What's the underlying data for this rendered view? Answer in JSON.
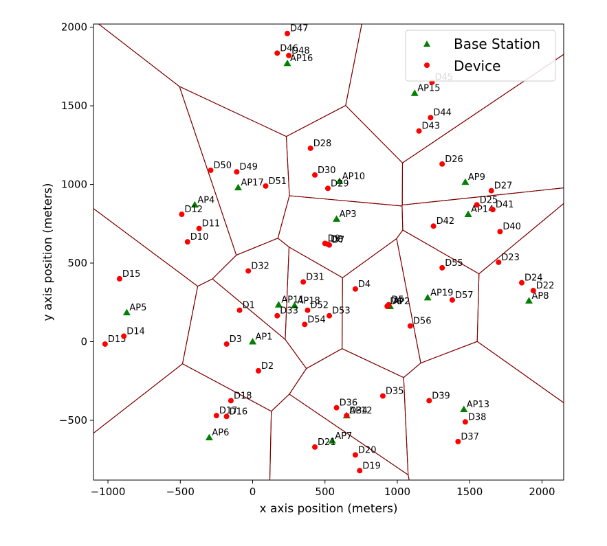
{
  "chart_data": {
    "type": "scatter",
    "xlabel": "x axis position (meters)",
    "ylabel": "y axis position (meters)",
    "xlim": [
      -1100,
      2150
    ],
    "ylim": [
      -880,
      2020
    ],
    "xticks": [
      -1000,
      -500,
      0,
      500,
      1000,
      1500,
      2000
    ],
    "xtick_labels": [
      "−1000",
      "−500",
      "0",
      "500",
      "1000",
      "1500",
      "2000"
    ],
    "yticks": [
      -500,
      0,
      500,
      1000,
      1500,
      2000
    ],
    "ytick_labels": [
      "−500",
      "0",
      "500",
      "1000",
      "1500",
      "2000"
    ],
    "grid": false,
    "legend": {
      "placement": "top-right",
      "entries": [
        {
          "name": "Base Station",
          "marker": "triangle",
          "color": "#008000"
        },
        {
          "name": "Device",
          "marker": "circle",
          "color": "#ff0000"
        }
      ]
    },
    "voronoi_color": "#800000",
    "series": [
      {
        "name": "Base Station",
        "color": "#008000",
        "points": [
          {
            "label": "AP1",
            "x": 0,
            "y": 0
          },
          {
            "label": "AP2",
            "x": 950,
            "y": 225
          },
          {
            "label": "AP3",
            "x": 580,
            "y": 780
          },
          {
            "label": "AP4",
            "x": -400,
            "y": 870
          },
          {
            "label": "AP5",
            "x": -870,
            "y": 185
          },
          {
            "label": "AP6",
            "x": -300,
            "y": -610
          },
          {
            "label": "AP7",
            "x": 550,
            "y": -630
          },
          {
            "label": "AP8",
            "x": 1910,
            "y": 260
          },
          {
            "label": "AP9",
            "x": 1470,
            "y": 1015
          },
          {
            "label": "AP10",
            "x": 600,
            "y": 1020
          },
          {
            "label": "AP11",
            "x": 180,
            "y": 235
          },
          {
            "label": "AP12",
            "x": 650,
            "y": -470
          },
          {
            "label": "AP13",
            "x": 1460,
            "y": -430
          },
          {
            "label": "AP14",
            "x": 1490,
            "y": 810
          },
          {
            "label": "AP15",
            "x": 1120,
            "y": 1580
          },
          {
            "label": "AP16",
            "x": 240,
            "y": 1770
          },
          {
            "label": "AP17",
            "x": -100,
            "y": 980
          },
          {
            "label": "AP18",
            "x": 290,
            "y": 230
          },
          {
            "label": "AP19",
            "x": 1210,
            "y": 280
          }
        ]
      },
      {
        "name": "Device",
        "color": "#ff0000",
        "points": [
          {
            "label": "D1",
            "x": -90,
            "y": 200
          },
          {
            "label": "D2",
            "x": 40,
            "y": -185
          },
          {
            "label": "D3",
            "x": -180,
            "y": -15
          },
          {
            "label": "D4",
            "x": 710,
            "y": 335
          },
          {
            "label": "D5",
            "x": 940,
            "y": 235
          },
          {
            "label": "D6",
            "x": 930,
            "y": 225
          },
          {
            "label": "D7",
            "x": 530,
            "y": 615
          },
          {
            "label": "D8",
            "x": 520,
            "y": 620
          },
          {
            "label": "D9",
            "x": 500,
            "y": 625
          },
          {
            "label": "D10",
            "x": -450,
            "y": 635
          },
          {
            "label": "D11",
            "x": -370,
            "y": 720
          },
          {
            "label": "D12",
            "x": -490,
            "y": 810
          },
          {
            "label": "D13",
            "x": -1020,
            "y": -15
          },
          {
            "label": "D14",
            "x": -890,
            "y": 35
          },
          {
            "label": "D15",
            "x": -920,
            "y": 400
          },
          {
            "label": "D16",
            "x": -180,
            "y": -475
          },
          {
            "label": "D17",
            "x": -250,
            "y": -470
          },
          {
            "label": "D18",
            "x": -150,
            "y": -375
          },
          {
            "label": "D19",
            "x": 740,
            "y": -820
          },
          {
            "label": "D20",
            "x": 710,
            "y": -720
          },
          {
            "label": "D21",
            "x": 430,
            "y": -670
          },
          {
            "label": "D22",
            "x": 1940,
            "y": 325
          },
          {
            "label": "D23",
            "x": 1700,
            "y": 505
          },
          {
            "label": "D24",
            "x": 1860,
            "y": 375
          },
          {
            "label": "D25",
            "x": 1550,
            "y": 870
          },
          {
            "label": "D26",
            "x": 1310,
            "y": 1130
          },
          {
            "label": "D27",
            "x": 1650,
            "y": 960
          },
          {
            "label": "D28",
            "x": 400,
            "y": 1230
          },
          {
            "label": "D29",
            "x": 520,
            "y": 975
          },
          {
            "label": "D30",
            "x": 430,
            "y": 1060
          },
          {
            "label": "D31",
            "x": 350,
            "y": 380
          },
          {
            "label": "D32",
            "x": -30,
            "y": 450
          },
          {
            "label": "D33",
            "x": 170,
            "y": 165
          },
          {
            "label": "D34",
            "x": 650,
            "y": -470
          },
          {
            "label": "D35",
            "x": 900,
            "y": -345
          },
          {
            "label": "D36",
            "x": 580,
            "y": -420
          },
          {
            "label": "D37",
            "x": 1420,
            "y": -635
          },
          {
            "label": "D38",
            "x": 1470,
            "y": -510
          },
          {
            "label": "D39",
            "x": 1220,
            "y": -375
          },
          {
            "label": "D40",
            "x": 1710,
            "y": 700
          },
          {
            "label": "D41",
            "x": 1660,
            "y": 840
          },
          {
            "label": "D42",
            "x": 1250,
            "y": 735
          },
          {
            "label": "D43",
            "x": 1150,
            "y": 1340
          },
          {
            "label": "D44",
            "x": 1230,
            "y": 1425
          },
          {
            "label": "D45",
            "x": 1240,
            "y": 1650
          },
          {
            "label": "D46",
            "x": 170,
            "y": 1835
          },
          {
            "label": "D47",
            "x": 240,
            "y": 1960
          },
          {
            "label": "D48",
            "x": 250,
            "y": 1820
          },
          {
            "label": "D49",
            "x": -110,
            "y": 1080
          },
          {
            "label": "D50",
            "x": -290,
            "y": 1090
          },
          {
            "label": "D51",
            "x": 90,
            "y": 990
          },
          {
            "label": "D52",
            "x": 380,
            "y": 200
          },
          {
            "label": "D53",
            "x": 530,
            "y": 165
          },
          {
            "label": "D54",
            "x": 360,
            "y": 110
          },
          {
            "label": "D55",
            "x": 1310,
            "y": 470
          },
          {
            "label": "D56",
            "x": 1090,
            "y": 100
          },
          {
            "label": "D57",
            "x": 1380,
            "y": 265
          }
        ]
      }
    ]
  }
}
